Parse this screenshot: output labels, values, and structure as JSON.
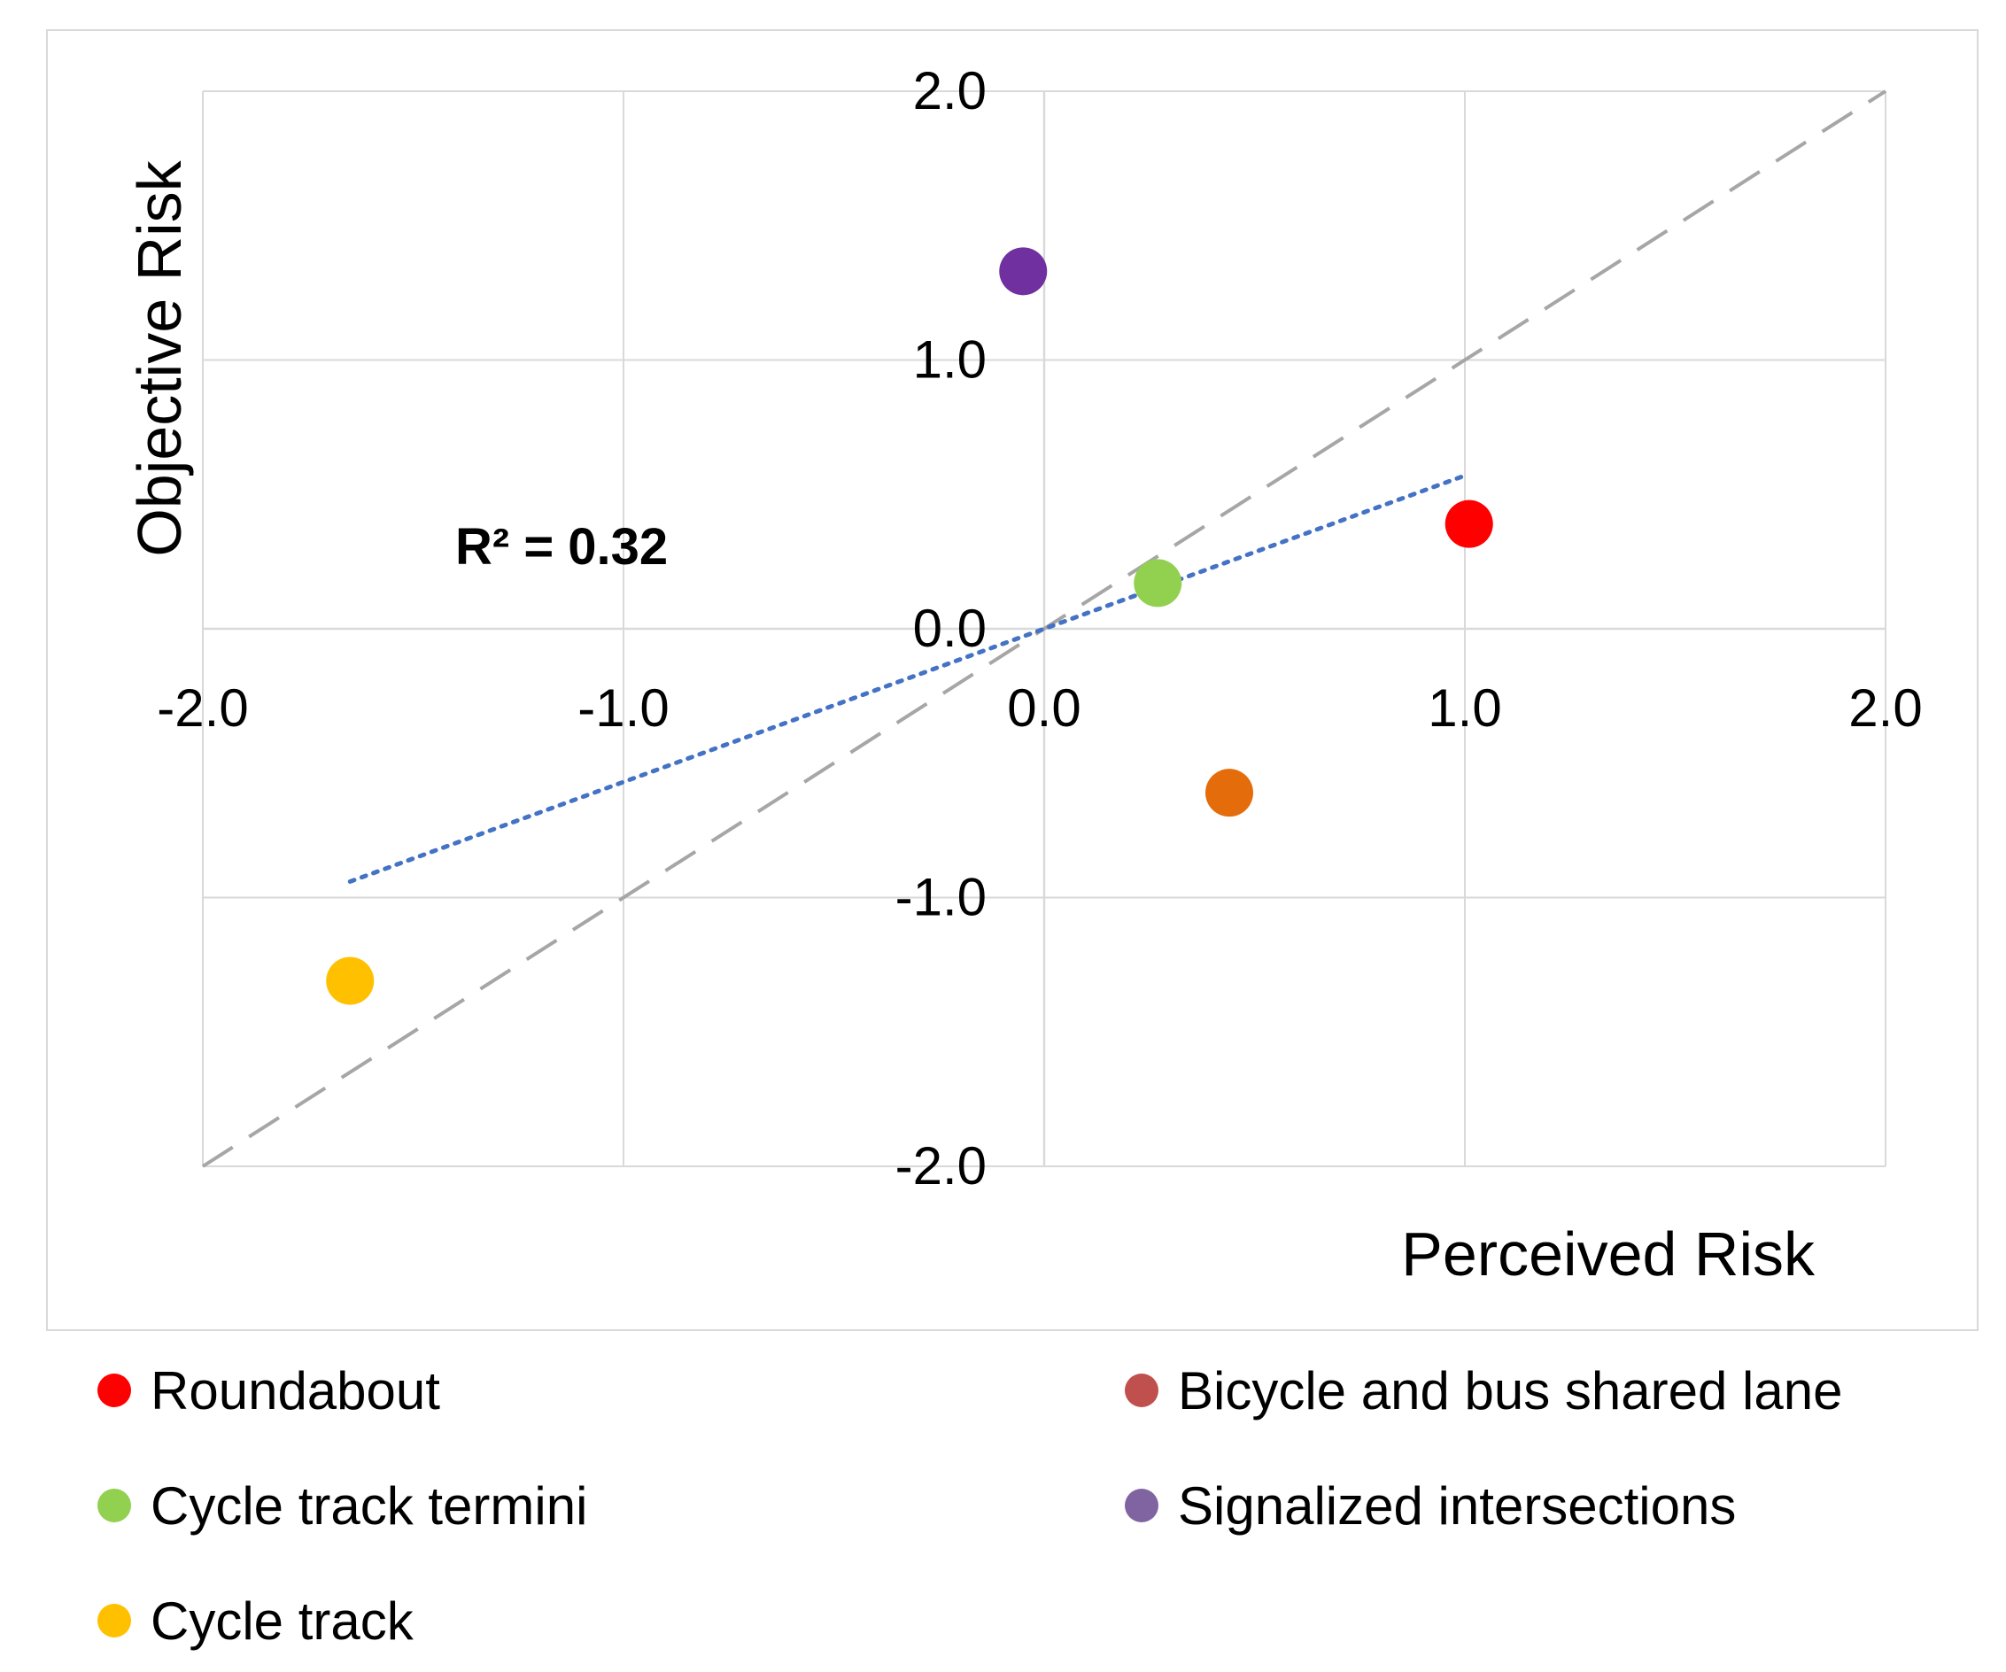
{
  "chart_data": {
    "type": "scatter",
    "title": "",
    "xlabel": "Perceived Risk",
    "ylabel": "Objective Risk",
    "xlim": [
      -2.0,
      2.0
    ],
    "ylim": [
      -2.0,
      2.0
    ],
    "xticks": [
      -2.0,
      -1.0,
      0.0,
      1.0,
      2.0
    ],
    "yticks": [
      -2.0,
      -1.0,
      0.0,
      1.0,
      2.0
    ],
    "xtick_labels": [
      "-2.0",
      "-1.0",
      "0.0",
      "1.0",
      "2.0"
    ],
    "ytick_labels": [
      "-2.0",
      "-1.0",
      "0.0",
      "1.0",
      "2.0"
    ],
    "grid": true,
    "legend_position": "bottom",
    "series": [
      {
        "name": "Roundabout",
        "color": "#ff0000",
        "x": 1.01,
        "y": 0.39
      },
      {
        "name": "Bicycle and bus shared lane",
        "color": "#e46c0a",
        "legend_color": "#c0504d",
        "x": 0.44,
        "y": -0.61
      },
      {
        "name": "Cycle track termini",
        "color": "#92d050",
        "x": 0.27,
        "y": 0.17
      },
      {
        "name": "Signalized intersections",
        "color": "#7030a0",
        "legend_color": "#8064a2",
        "x": -0.05,
        "y": 1.33
      },
      {
        "name": "Cycle track",
        "color": "#ffc000",
        "x": -1.65,
        "y": -1.31
      }
    ],
    "trendline": {
      "type": "linear",
      "x_start": -1.65,
      "x_end": 1.0,
      "slope": 0.57,
      "intercept": 0.0,
      "color": "#4472c4",
      "style": "dotted"
    },
    "reference_line": {
      "x_start": -2.0,
      "y_start": -2.0,
      "x_end": 2.0,
      "y_end": 2.0,
      "color": "#a6a6a6",
      "style": "dashed"
    },
    "annotations": [
      {
        "text": "R² = 0.32",
        "x": -1.4,
        "y": 0.24
      }
    ]
  }
}
